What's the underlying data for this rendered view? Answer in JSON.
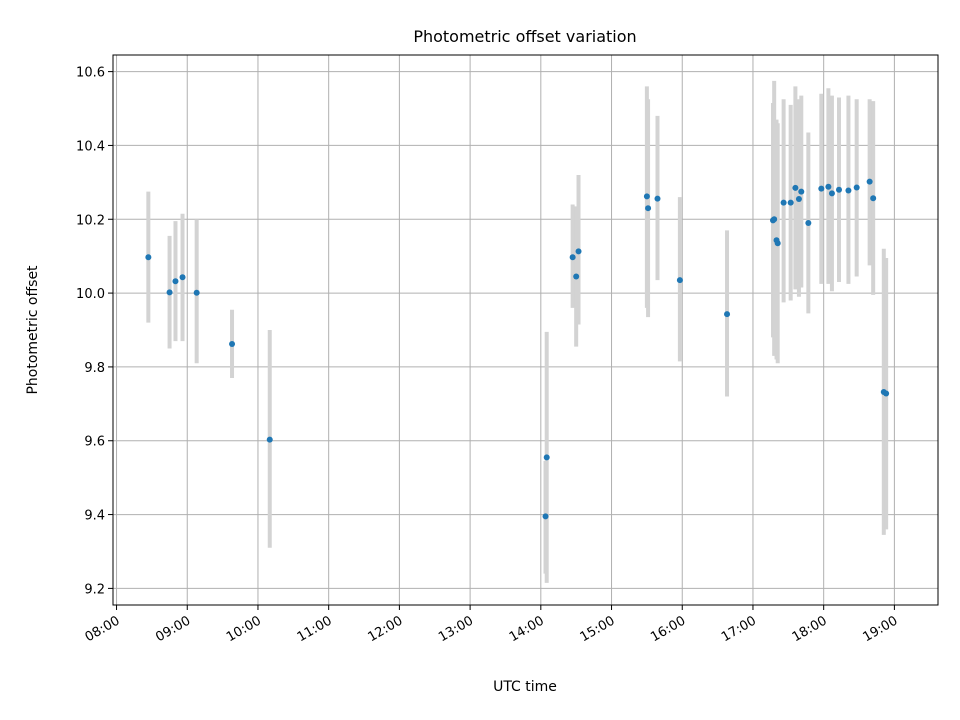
{
  "chart_data": {
    "type": "scatter",
    "title": "Photometric offset variation",
    "xlabel": "UTC time",
    "ylabel": "Photometric offset",
    "x_unit": "hour",
    "x_ticks": [
      "08:00",
      "09:00",
      "10:00",
      "11:00",
      "12:00",
      "13:00",
      "14:00",
      "15:00",
      "16:00",
      "17:00",
      "18:00",
      "19:00"
    ],
    "y_ticks": [
      "9.2",
      "9.4",
      "9.6",
      "9.8",
      "10.0",
      "10.2",
      "10.4",
      "10.6"
    ],
    "xlim": [
      "07:57",
      "19:37"
    ],
    "ylim": [
      9.155,
      10.645
    ],
    "grid": true,
    "colors": {
      "point": "#1f77b4",
      "errorbar": "#d3d3d3",
      "grid": "#b0b0b0"
    },
    "points": [
      {
        "x": "08:27",
        "y": 10.097,
        "ylow": 9.92,
        "yhigh": 10.275
      },
      {
        "x": "08:45",
        "y": 10.002,
        "ylow": 9.85,
        "yhigh": 10.155
      },
      {
        "x": "08:50",
        "y": 10.032,
        "ylow": 9.87,
        "yhigh": 10.195
      },
      {
        "x": "08:56",
        "y": 10.043,
        "ylow": 9.87,
        "yhigh": 10.215
      },
      {
        "x": "09:08",
        "y": 10.001,
        "ylow": 9.81,
        "yhigh": 10.2
      },
      {
        "x": "09:38",
        "y": 9.862,
        "ylow": 9.77,
        "yhigh": 9.955
      },
      {
        "x": "10:10",
        "y": 9.603,
        "ylow": 9.31,
        "yhigh": 9.9
      },
      {
        "x": "14:04",
        "y": 9.395,
        "ylow": 9.24,
        "yhigh": 9.545
      },
      {
        "x": "14:05",
        "y": 9.555,
        "ylow": 9.215,
        "yhigh": 9.895
      },
      {
        "x": "14:27",
        "y": 10.097,
        "ylow": 9.96,
        "yhigh": 10.24
      },
      {
        "x": "14:30",
        "y": 10.045,
        "ylow": 9.855,
        "yhigh": 10.235
      },
      {
        "x": "14:32",
        "y": 10.113,
        "ylow": 9.915,
        "yhigh": 10.32
      },
      {
        "x": "15:30",
        "y": 10.262,
        "ylow": 9.96,
        "yhigh": 10.56
      },
      {
        "x": "15:31",
        "y": 10.23,
        "ylow": 9.935,
        "yhigh": 10.525
      },
      {
        "x": "15:39",
        "y": 10.256,
        "ylow": 10.035,
        "yhigh": 10.48
      },
      {
        "x": "15:58",
        "y": 10.035,
        "ylow": 9.815,
        "yhigh": 10.26
      },
      {
        "x": "16:38",
        "y": 9.943,
        "ylow": 9.72,
        "yhigh": 10.17
      },
      {
        "x": "17:17",
        "y": 10.197,
        "ylow": 9.88,
        "yhigh": 10.515
      },
      {
        "x": "17:18",
        "y": 10.2,
        "ylow": 9.83,
        "yhigh": 10.575
      },
      {
        "x": "17:20",
        "y": 10.143,
        "ylow": 9.82,
        "yhigh": 10.47
      },
      {
        "x": "17:21",
        "y": 10.135,
        "ylow": 9.81,
        "yhigh": 10.46
      },
      {
        "x": "17:26",
        "y": 10.245,
        "ylow": 9.975,
        "yhigh": 10.525
      },
      {
        "x": "17:32",
        "y": 10.245,
        "ylow": 9.98,
        "yhigh": 10.51
      },
      {
        "x": "17:36",
        "y": 10.285,
        "ylow": 10.01,
        "yhigh": 10.56
      },
      {
        "x": "17:39",
        "y": 10.255,
        "ylow": 9.99,
        "yhigh": 10.525
      },
      {
        "x": "17:41",
        "y": 10.275,
        "ylow": 10.015,
        "yhigh": 10.535
      },
      {
        "x": "17:47",
        "y": 10.19,
        "ylow": 9.945,
        "yhigh": 10.435
      },
      {
        "x": "17:58",
        "y": 10.283,
        "ylow": 10.025,
        "yhigh": 10.54
      },
      {
        "x": "18:04",
        "y": 10.288,
        "ylow": 10.025,
        "yhigh": 10.555
      },
      {
        "x": "18:07",
        "y": 10.27,
        "ylow": 10.005,
        "yhigh": 10.535
      },
      {
        "x": "18:13",
        "y": 10.28,
        "ylow": 10.03,
        "yhigh": 10.53
      },
      {
        "x": "18:21",
        "y": 10.278,
        "ylow": 10.025,
        "yhigh": 10.535
      },
      {
        "x": "18:28",
        "y": 10.286,
        "ylow": 10.045,
        "yhigh": 10.525
      },
      {
        "x": "18:39",
        "y": 10.302,
        "ylow": 10.075,
        "yhigh": 10.525
      },
      {
        "x": "18:42",
        "y": 10.257,
        "ylow": 9.995,
        "yhigh": 10.52
      },
      {
        "x": "18:51",
        "y": 9.732,
        "ylow": 9.345,
        "yhigh": 10.12
      },
      {
        "x": "18:53",
        "y": 9.728,
        "ylow": 9.36,
        "yhigh": 10.095
      }
    ]
  }
}
